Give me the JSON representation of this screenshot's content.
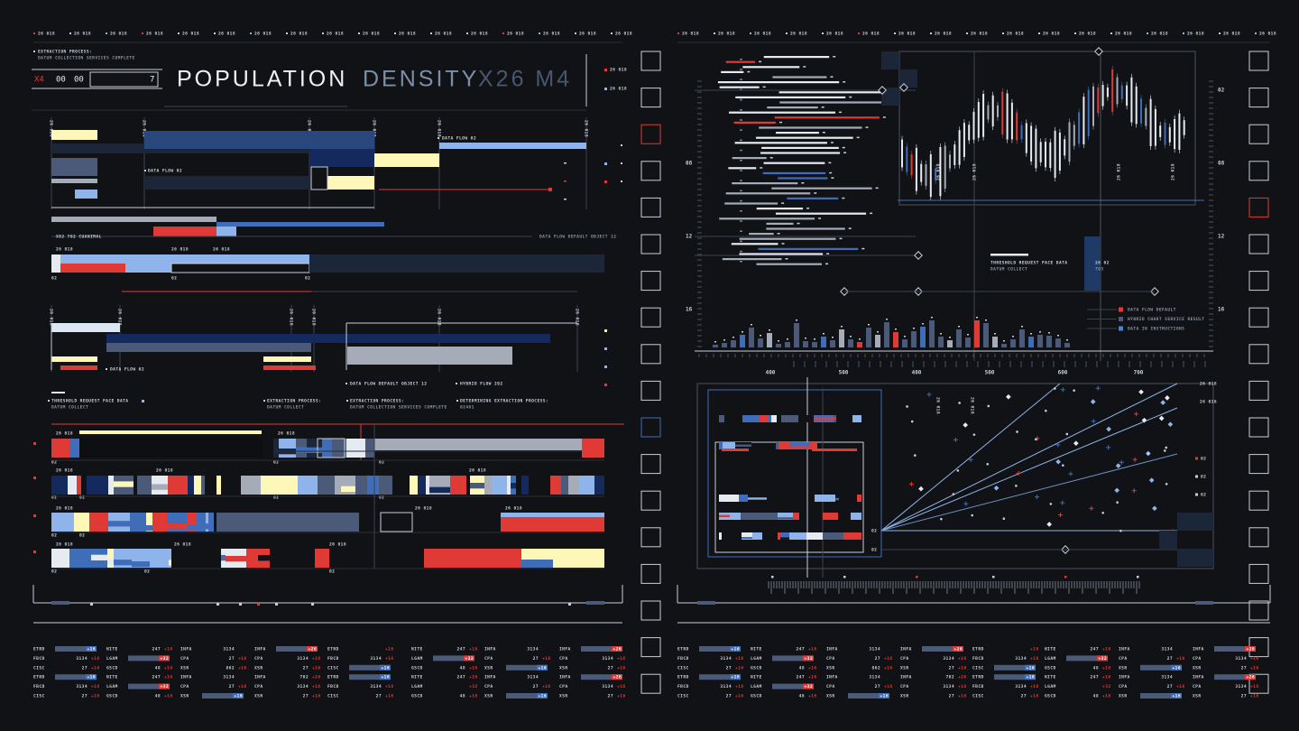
{
  "header": {
    "process": "EXTRACTION PROCESS:",
    "process_note": "DATUM COLLECTION SERVICES COMPLETE",
    "code": "X4",
    "counter_a": "00",
    "counter_b": "00",
    "counter_c": "7",
    "title": "POPULATION",
    "title_b": "DENSITY",
    "title_c": "X26 M4"
  },
  "marker": "26 018",
  "short": "02",
  "flow_labels": {
    "data_flow": "DATA FLOW 02",
    "cuanimal": "X02 702 CUANIMAL",
    "default_object": "DATA FLOW DEFAULT OBJECT 12",
    "hybrid": "HYBRID FLOW 292"
  },
  "notes": [
    {
      "title": "THRESHOLD REQUEST PACE DATA",
      "text": "DATUM COLLECT"
    },
    {
      "title": "EXTRACTION PROCESS:",
      "text": "DATUM COLLECT"
    },
    {
      "title": "EXTRACTION PROCESS:",
      "text": "DATUM COLLECTION SERVICES COMPLETE"
    },
    {
      "title": "DETERMINING EXTRACTION PROCESS:",
      "text": "02401"
    }
  ],
  "chart_note": {
    "title": "THRESHOLD REQUEST PACE DATA",
    "text": "DATUM COLLECT",
    "code": "26 02",
    "sub": "703"
  },
  "legend": [
    {
      "name": "DATA FLOW DEFAULT",
      "color": "#e03a36"
    },
    {
      "name": "HYBRID CHART SERVICE RESULT",
      "color": "#4a5a78"
    },
    {
      "name": "DATA IN INSTRUCTIONS",
      "color": "#4f7fd0"
    }
  ],
  "axis": {
    "left": [
      "08",
      "12",
      "16"
    ],
    "right": [
      "02",
      "08",
      "12",
      "16"
    ],
    "bottom": [
      "400",
      "500",
      "400",
      "500",
      "600",
      "700"
    ]
  },
  "histogram": {
    "ylim": [
      0,
      35
    ],
    "values": [
      3,
      5,
      8,
      14,
      22,
      10,
      16,
      4,
      6,
      27,
      7,
      6,
      12,
      8,
      20,
      9,
      6,
      22,
      14,
      28,
      17,
      9,
      18,
      23,
      30,
      12,
      8,
      20,
      11,
      30,
      27,
      12,
      4,
      9,
      20,
      12,
      14,
      13,
      10,
      5
    ],
    "colors": [
      "#4a5a78",
      "#4a5a78",
      "#4a5a78",
      "#3f6db8",
      "#4a5a78",
      "#4a5a78",
      "#a5acb8",
      "#4a5a78",
      "#4a5a78",
      "#4a5a78",
      "#4a5a78",
      "#4a5a78",
      "#3f6db8",
      "#4a5a78",
      "#a5acb8",
      "#4a5a78",
      "#e03a36",
      "#4a5a78",
      "#a5acb8",
      "#4a5a78",
      "#e03a36",
      "#4a5a78",
      "#4a5a78",
      "#3f6db8",
      "#4a5a78",
      "#4a5a78",
      "#a5acb8",
      "#4a5a78",
      "#4a5a78",
      "#e03a36",
      "#4a5a78",
      "#a5acb8",
      "#4a5a78",
      "#4a5a78",
      "#4a5a78",
      "#3f6db8",
      "#4a5a78",
      "#4a5a78",
      "#4a5a78",
      "#4a5a78"
    ]
  },
  "table": {
    "rows": [
      [
        {
          "code": "ETRD",
          "badge": "+16"
        },
        {
          "code": "NITE",
          "value": "247",
          "delta": "+16"
        },
        {
          "code": "INFA",
          "value": "3134"
        },
        {
          "code": "INFA",
          "badge": "+26"
        },
        {
          "code": "ETRD",
          "delta": "+16"
        },
        {
          "code": "NITE",
          "value": "247",
          "delta": "+16"
        },
        {
          "code": "INFA",
          "value": "3134"
        },
        {
          "code": "INFA",
          "badge": "+26"
        }
      ],
      [
        {
          "code": "FBCD",
          "value": "3134",
          "delta": "+16"
        },
        {
          "code": "LGAM",
          "badge": "+32"
        },
        {
          "code": "CPA",
          "value": "27",
          "delta": "+16"
        },
        {
          "code": "CPA",
          "value": "3134",
          "delta": "+16"
        },
        {
          "code": "FBCD",
          "value": "3134",
          "delta": "+16"
        },
        {
          "code": "LGAM",
          "badge": "+32"
        },
        {
          "code": "CPA",
          "value": "27",
          "delta": "+16"
        },
        {
          "code": "CPA",
          "value": "3134",
          "delta": "+16"
        }
      ],
      [
        {
          "code": "CISC",
          "value": "27",
          "delta": "+16"
        },
        {
          "code": "GSCD",
          "value": "48",
          "delta": "+16"
        },
        {
          "code": "XSR",
          "value": "862",
          "delta": "+16"
        },
        {
          "code": "XSR",
          "value": "27",
          "delta": "+16"
        },
        {
          "code": "CISC",
          "badge": "+16"
        },
        {
          "code": "GSCD",
          "value": "48",
          "delta": "+16"
        },
        {
          "code": "XSR",
          "badge": "+16"
        },
        {
          "code": "XSR",
          "value": "27",
          "delta": "+16"
        }
      ],
      [
        {
          "code": "ETRD",
          "badge": "+16"
        },
        {
          "code": "NITE",
          "value": "247",
          "delta": "+16"
        },
        {
          "code": "INFA",
          "value": "3134"
        },
        {
          "code": "INFA",
          "value": "702",
          "delta": "+26"
        },
        {
          "code": "ETRD",
          "badge": "+16"
        },
        {
          "code": "NITE",
          "value": "247",
          "delta": "+16"
        },
        {
          "code": "INFA",
          "value": "3134"
        },
        {
          "code": "INFA",
          "badge": "+26"
        }
      ],
      [
        {
          "code": "FBCD",
          "value": "3134",
          "delta": "+16"
        },
        {
          "code": "LGAM",
          "badge": "+32"
        },
        {
          "code": "CPA",
          "value": "27",
          "delta": "+16"
        },
        {
          "code": "CPA",
          "value": "3134",
          "delta": "+16"
        },
        {
          "code": "FBCD",
          "value": "3134",
          "delta": "+16"
        },
        {
          "code": "LGAM",
          "delta": "+32"
        },
        {
          "code": "CPA",
          "value": "27",
          "delta": "+16"
        },
        {
          "code": "CPA",
          "value": "3134",
          "delta": "+16"
        }
      ],
      [
        {
          "code": "CISC",
          "value": "27",
          "delta": "+16"
        },
        {
          "code": "GSCD",
          "value": "48",
          "delta": "+16"
        },
        {
          "code": "XSR",
          "badge": "+16"
        },
        {
          "code": "XSR",
          "value": "27",
          "delta": "+16"
        },
        {
          "code": "CISC",
          "value": "27",
          "delta": "+16"
        },
        {
          "code": "GSCD",
          "value": "48",
          "delta": "+16"
        },
        {
          "code": "XSR",
          "badge": "+16"
        },
        {
          "code": "XSR",
          "value": "27",
          "delta": "+16"
        }
      ]
    ]
  }
}
